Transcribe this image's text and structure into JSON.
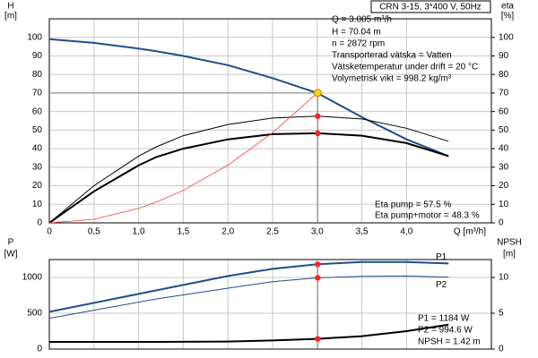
{
  "chart_data": [
    {
      "type": "line",
      "model": "CRN 3-15, 3*400 V, 50Hz",
      "ylabel": [
        "H",
        "[m]"
      ],
      "y2label": [
        "eta",
        "[%]"
      ],
      "xlabel": "Q [m³/h]",
      "annotations": [
        "Q = 3.005 m³/h",
        "H = 70.04 m",
        "n = 2872 rpm",
        "Transporterad vätska = Vatten",
        "Vätsketemperatur under drift = 20 °C",
        "Volymetrisk vikt = 998.2 kg/m³",
        "Eta pump = 57.5 %",
        "Eta pump+motor = 48.3 %"
      ],
      "x": [
        0,
        0.5,
        1.0,
        1.2,
        1.5,
        2.0,
        2.5,
        3.0,
        3.5,
        4.0,
        4.47
      ],
      "xlim": [
        0,
        4.95
      ],
      "xticks": [
        0,
        {
          "value": 0.5,
          "label": "0,5"
        },
        {
          "value": 1.0,
          "label": "1,0"
        },
        {
          "value": 1.5,
          "label": "1,5"
        },
        {
          "value": 2.0,
          "label": "2,0"
        },
        {
          "value": 2.5,
          "label": "2,5"
        },
        {
          "value": 3.0,
          "label": "3,0"
        },
        {
          "value": 3.5,
          "label": "3,5"
        },
        {
          "value": 4.0,
          "label": "4,0"
        }
      ],
      "ylim": [
        0,
        110
      ],
      "yticks": [
        0,
        10,
        20,
        30,
        40,
        50,
        60,
        70,
        80,
        90,
        100
      ],
      "y2lim": [
        0,
        110
      ],
      "y2ticks": [
        0,
        10,
        20,
        30,
        40,
        50,
        60,
        70,
        80,
        90,
        100
      ],
      "grid": true,
      "series": [
        {
          "color": "#1f4e8c",
          "width": 2,
          "values": [
            99,
            97,
            94,
            92.5,
            90,
            85,
            78,
            70,
            57,
            45,
            36
          ]
        },
        {
          "color": "#000000",
          "width": 1,
          "axis": "y2",
          "values": [
            0,
            20,
            36,
            41,
            47,
            53,
            56.5,
            57.5,
            56,
            51,
            44
          ]
        },
        {
          "color": "#000000",
          "width": 2,
          "axis": "y2",
          "values": [
            0,
            17,
            31,
            35.5,
            40,
            45,
            47.8,
            48.3,
            47,
            43,
            36
          ]
        },
        {
          "color": "#ff3b3b",
          "width": 0.8,
          "values": [
            0,
            1.94,
            7.8,
            11.2,
            17.5,
            31.1,
            48.6,
            70,
            null,
            null,
            null
          ]
        }
      ],
      "points": [
        {
          "x": 3.005,
          "y": 70.04,
          "color": "#ffd400"
        },
        {
          "x": 3.005,
          "y": 57.5,
          "color": "#ff2020",
          "axis": "y2"
        },
        {
          "x": 3.005,
          "y": 48.3,
          "color": "#ff2020",
          "axis": "y2"
        }
      ]
    },
    {
      "type": "line",
      "ylabel": [
        "P",
        "[W]"
      ],
      "y2label": [
        "NPSH",
        "[m]"
      ],
      "annotations": [
        "P1 = 1184 W",
        "P2 = 994.6 W",
        "NPSH = 1.42 m"
      ],
      "x": [
        0,
        1.2,
        2.0,
        2.5,
        3.0,
        3.5,
        4.0,
        4.47
      ],
      "xlim": [
        0,
        4.95
      ],
      "xticks": [
        0,
        0.5,
        1.0,
        1.5,
        2.0,
        2.5,
        3.0,
        3.5,
        4.0
      ],
      "ylim": [
        0,
        1250
      ],
      "yticks": [
        0,
        500,
        1000
      ],
      "y2lim": [
        0,
        12.5
      ],
      "y2ticks": [
        0,
        5,
        10
      ],
      "grid": true,
      "series": [
        {
          "name": "P1",
          "color": "#1f4e8c",
          "width": 2,
          "values": [
            520,
            820,
            1020,
            1120,
            1184,
            1215,
            1215,
            1195
          ]
        },
        {
          "name": "P2",
          "color": "#1f4e8c",
          "width": 1,
          "values": [
            430,
            700,
            850,
            940,
            994.6,
            1015,
            1020,
            1005
          ]
        },
        {
          "color": "#000000",
          "width": 2,
          "axis": "y2",
          "values": [
            1.0,
            1.0,
            1.05,
            1.2,
            1.42,
            1.8,
            2.5,
            3.4
          ]
        }
      ],
      "points": [
        {
          "x": 3.005,
          "y": 1184,
          "color": "#ff2020"
        },
        {
          "x": 3.005,
          "y": 994.6,
          "color": "#ff2020"
        },
        {
          "x": 3.005,
          "y": 1.42,
          "color": "#ff2020",
          "axis": "y2"
        }
      ]
    }
  ]
}
